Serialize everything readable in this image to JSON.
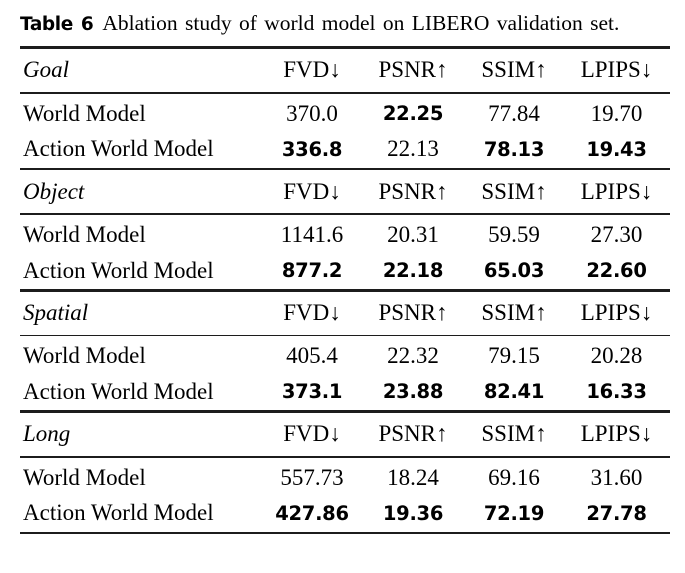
{
  "caption": {
    "label": "Table 6",
    "text": "Ablation study of world model on LIBERO validation set."
  },
  "columns": [
    "FVD↓",
    "PSNR↑",
    "SSIM↑",
    "LPIPS↓"
  ],
  "sections": [
    {
      "name": "Goal",
      "rows": [
        {
          "label": "World Model",
          "values": [
            "370.0",
            "22.25",
            "77.84",
            "19.70"
          ],
          "bold": [
            false,
            true,
            false,
            false
          ]
        },
        {
          "label": "Action World Model",
          "values": [
            "336.8",
            "22.13",
            "78.13",
            "19.43"
          ],
          "bold": [
            true,
            false,
            true,
            true
          ]
        }
      ]
    },
    {
      "name": "Object",
      "rows": [
        {
          "label": "World Model",
          "values": [
            "1141.6",
            "20.31",
            "59.59",
            "27.30"
          ],
          "bold": [
            false,
            false,
            false,
            false
          ]
        },
        {
          "label": "Action World Model",
          "values": [
            "877.2",
            "22.18",
            "65.03",
            "22.60"
          ],
          "bold": [
            true,
            true,
            true,
            true
          ]
        }
      ]
    },
    {
      "name": "Spatial",
      "rows": [
        {
          "label": "World Model",
          "values": [
            "405.4",
            "22.32",
            "79.15",
            "20.28"
          ],
          "bold": [
            false,
            false,
            false,
            false
          ]
        },
        {
          "label": "Action World Model",
          "values": [
            "373.1",
            "23.88",
            "82.41",
            "16.33"
          ],
          "bold": [
            true,
            true,
            true,
            true
          ]
        }
      ]
    },
    {
      "name": "Long",
      "rows": [
        {
          "label": "World Model",
          "values": [
            "557.73",
            "18.24",
            "69.16",
            "31.60"
          ],
          "bold": [
            false,
            false,
            false,
            false
          ]
        },
        {
          "label": "Action World Model",
          "values": [
            "427.86",
            "19.36",
            "72.19",
            "27.78"
          ],
          "bold": [
            true,
            true,
            true,
            true
          ]
        }
      ]
    }
  ]
}
